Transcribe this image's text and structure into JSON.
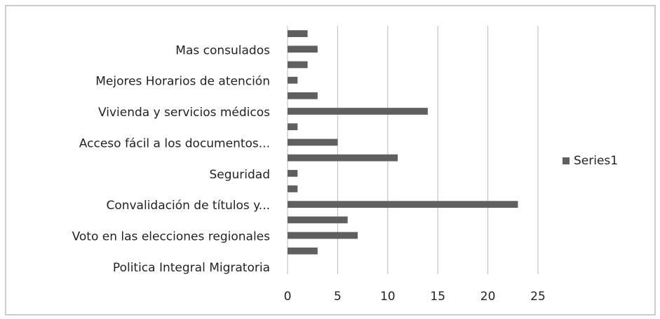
{
  "chart_data": {
    "type": "barh",
    "categories": [
      "Politica Integral Migratoria",
      null,
      "Voto en las elecciones regionales",
      null,
      "Convalidación  de títulos y...",
      null,
      "Seguridad",
      null,
      "Acceso fácil a los documentos...",
      null,
      "Vivienda y servicios médicos",
      null,
      "Mejores Horarios de atención",
      null,
      "Mas consulados",
      null
    ],
    "series": [
      {
        "name": "Series1",
        "color": "#5f5f5f",
        "values": [
          0,
          3,
          7,
          6,
          23,
          1,
          1,
          11,
          5,
          1,
          14,
          3,
          1,
          2,
          3,
          2
        ]
      }
    ],
    "xlim": [
      0,
      25
    ],
    "xticks": [
      0,
      5,
      10,
      15,
      20,
      25
    ],
    "grid": true,
    "legend": "right"
  }
}
